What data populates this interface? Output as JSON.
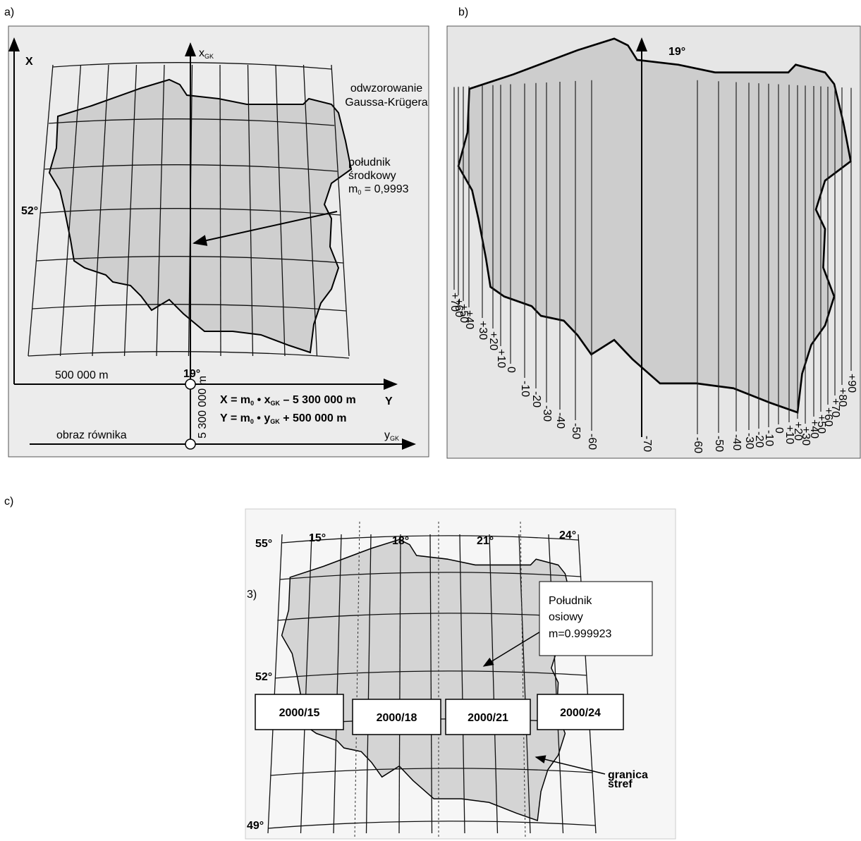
{
  "panel_a": {
    "label": "a)",
    "axis_x": "X",
    "axis_xgk": [
      {
        "t": "x"
      },
      {
        "sub": "GK"
      }
    ],
    "projection_note": [
      "odwzorowanie",
      "Gaussa-Krügera"
    ],
    "meridian_note": [
      "południk",
      "środkowy"
    ],
    "scale_factor": [
      {
        "t": "m"
      },
      {
        "sub": "0"
      },
      {
        "t": " = 0,9993"
      }
    ],
    "latitude": "52°",
    "false_easting": "500 000 m",
    "central_meridian": "19°",
    "false_northing": "5 300 000 m",
    "formula_x": [
      {
        "t": "X = m"
      },
      {
        "sub": "0"
      },
      {
        "t": " • x"
      },
      {
        "sub": "GK"
      },
      {
        "t": " – 5 300 000 m"
      }
    ],
    "formula_y": [
      {
        "t": "Y = m"
      },
      {
        "sub": "0"
      },
      {
        "t": " • y"
      },
      {
        "sub": "GK"
      },
      {
        "t": " + 500 000 m"
      }
    ],
    "axis_y": "Y",
    "equator": "obraz równika",
    "axis_ygk": [
      {
        "t": "y"
      },
      {
        "sub": "GK"
      }
    ]
  },
  "panel_b": {
    "label": "b)",
    "central_meridian": "19°",
    "distortion_left": [
      "+70",
      "+60",
      "+50",
      "+40",
      "+30",
      "+20",
      "+10",
      "0",
      "-10",
      "-20",
      "-30",
      "-40",
      "-50",
      "-60"
    ],
    "distortion_center": "-70",
    "distortion_right": [
      "-60",
      "-50",
      "-40",
      "-30",
      "-20",
      "-10",
      "0",
      "+10",
      "+20",
      "+30",
      "+40",
      "+50",
      "+60",
      "+70",
      "+80",
      "+90"
    ]
  },
  "panel_c": {
    "label": "c)",
    "lat_top": "55°",
    "lon": [
      "15°",
      "18°",
      "21°",
      "24°"
    ],
    "lat_mid": "52°",
    "lat_bottom": "49°",
    "edge_mark": "3)",
    "axis_note": [
      "Południk",
      "osiowy",
      "m=0.999923"
    ],
    "zones": [
      "2000/15",
      "2000/18",
      "2000/21",
      "2000/24"
    ],
    "boundary_note": [
      "granica",
      "stref"
    ]
  }
}
